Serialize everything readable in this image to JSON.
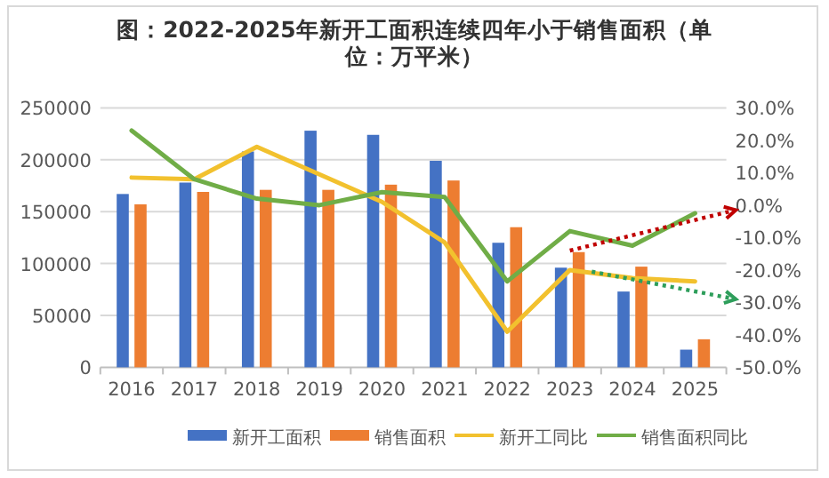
{
  "chart_data": {
    "type": "bar",
    "title": "图：2022-2025年新开工面积连续四年小于销售面积（单位：万平米）",
    "categories": [
      "2016",
      "2017",
      "2018",
      "2019",
      "2020",
      "2021",
      "2022",
      "2023",
      "2024",
      "2025"
    ],
    "series": [
      {
        "name": "新开工面积",
        "color": "#4472c4",
        "values": [
          167000,
          178000,
          208000,
          228000,
          224000,
          199000,
          120000,
          96000,
          73000,
          17000
        ]
      },
      {
        "name": "销售面积",
        "color": "#ed7d31",
        "values": [
          157000,
          169000,
          171000,
          171000,
          176000,
          180000,
          135000,
          111000,
          97000,
          27000
        ]
      },
      {
        "name": "新开工同比",
        "type": "line",
        "axis": "y2",
        "color": "#f2c12e",
        "values": [
          8.5,
          8,
          18,
          9.5,
          1,
          -11.5,
          -39,
          -20,
          -22.5,
          -23.5
        ]
      },
      {
        "name": "销售面积同比",
        "type": "line",
        "axis": "y2",
        "color": "#70ad47",
        "values": [
          23,
          8,
          2,
          0,
          4,
          2.5,
          -23.5,
          -8,
          -12.5,
          -2.5
        ]
      }
    ],
    "ylim": [
      0,
      250000
    ],
    "yticks": [
      0,
      50000,
      100000,
      150000,
      200000,
      250000
    ],
    "y2lim": [
      -50,
      30
    ],
    "y2ticks": [
      {
        "value": 30,
        "label": "30.0%"
      },
      {
        "value": 20,
        "label": "20.0%"
      },
      {
        "value": 10,
        "label": "10.0%"
      },
      {
        "value": 0,
        "label": "0.0%"
      },
      {
        "value": -10,
        "label": "-10.0%"
      },
      {
        "value": -20,
        "label": "-20.0%"
      },
      {
        "value": -30,
        "label": "-30.0%"
      },
      {
        "value": -40,
        "label": "-40.0%"
      },
      {
        "value": -50,
        "label": "-50.0%"
      }
    ],
    "grid": "y",
    "legend": "bottom"
  }
}
